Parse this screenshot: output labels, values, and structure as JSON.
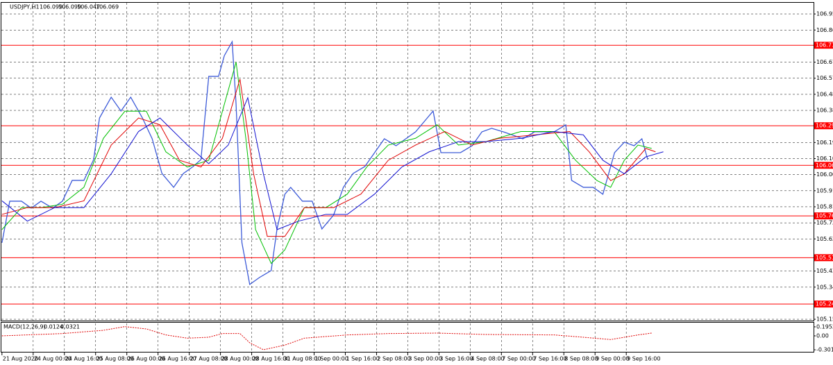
{
  "chart_data": [
    {
      "type": "line",
      "title": "USDJPY,H1",
      "ohlc": [
        106.099,
        106.099,
        106.047,
        106.069
      ],
      "xlim": [
        -1,
        416
      ],
      "xticks": [
        {
          "value": 0,
          "label": "21 Aug 2020"
        },
        {
          "value": 16,
          "label": "24 Aug 00:00"
        },
        {
          "value": 32,
          "label": "24 Aug 16:00"
        },
        {
          "value": 48,
          "label": "25 Aug 08:00"
        },
        {
          "value": 64,
          "label": "26 Aug 00:00"
        },
        {
          "value": 80,
          "label": "26 Aug 16:00"
        },
        {
          "value": 96,
          "label": "27 Aug 08:00"
        },
        {
          "value": 112,
          "label": "28 Aug 00:00"
        },
        {
          "value": 128,
          "label": "28 Aug 16:00"
        },
        {
          "value": 144,
          "label": "31 Aug 08:00"
        },
        {
          "value": 160,
          "label": "1 Sep 00:00"
        },
        {
          "value": 176,
          "label": "1 Sep 16:00"
        },
        {
          "value": 192,
          "label": "2 Sep 08:00"
        },
        {
          "value": 208,
          "label": "3 Sep 00:00"
        },
        {
          "value": 224,
          "label": "3 Sep 16:00"
        },
        {
          "value": 240,
          "label": "4 Sep 08:00"
        },
        {
          "value": 256,
          "label": "7 Sep 00:00"
        },
        {
          "value": 272,
          "label": "7 Sep 16:00"
        },
        {
          "value": 288,
          "label": "8 Sep 08:00"
        },
        {
          "value": 304,
          "label": "9 Sep 00:00"
        },
        {
          "value": 320,
          "label": "9 Sep 16:00"
        }
      ],
      "ylim": [
        105.138,
        107.017
      ],
      "yticks": [
        106.955,
        {
          "value": 106.86,
          "label": "106.860"
        },
        {
          "value": 106.67,
          "label": "106.670"
        },
        106.575,
        {
          "value": 106.48,
          "label": "106.480"
        },
        106.385,
        106.195,
        {
          "value": 106.1,
          "label": "106.100"
        },
        106.005,
        {
          "value": 105.91,
          "label": "105.910"
        },
        105.815,
        {
          "value": 105.72,
          "label": "105.720"
        },
        105.625,
        105.435,
        {
          "value": 105.34,
          "label": "105.340"
        },
        {
          "value": 105.15,
          "label": "105.150"
        }
      ],
      "levels": [
        {
          "value": 106.77,
          "label": "106.770"
        },
        106.294,
        {
          "value": 106.06,
          "label": "106.060"
        },
        105.761,
        105.514,
        {
          "value": 105.24,
          "label": "105.240"
        }
      ],
      "level_color": "#ff0000",
      "grid": true,
      "series": [
        {
          "color": "#3c5ad8",
          "x": [
            0,
            4,
            10,
            15,
            20,
            26,
            31,
            36,
            42,
            47,
            50,
            56,
            61,
            66,
            72,
            77,
            82,
            88,
            93,
            98,
            102,
            106,
            111,
            114,
            118,
            120,
            123,
            127,
            132,
            138,
            141,
            145,
            148,
            154,
            159,
            164,
            170,
            175,
            180,
            186,
            191,
            196,
            202,
            207,
            212,
            218,
            221,
            225,
            230,
            235,
            241,
            246,
            251,
            257,
            262,
            267,
            273,
            278,
            283,
            289,
            292,
            298,
            303,
            308,
            314,
            319,
            324,
            328,
            331
          ],
          "values": [
            105.602,
            105.848,
            105.848,
            105.807,
            105.848,
            105.807,
            105.848,
            105.971,
            105.971,
            106.094,
            106.34,
            106.463,
            106.381,
            106.463,
            106.34,
            106.217,
            106.012,
            105.93,
            106.012,
            106.053,
            106.094,
            106.586,
            106.586,
            106.709,
            106.791,
            106.422,
            105.602,
            105.356,
            105.397,
            105.438,
            105.684,
            105.889,
            105.93,
            105.848,
            105.848,
            105.684,
            105.766,
            105.93,
            106.012,
            106.053,
            106.135,
            106.217,
            106.176,
            106.217,
            106.258,
            106.34,
            106.381,
            106.135,
            106.135,
            106.135,
            106.176,
            106.258,
            106.279,
            106.258,
            106.238,
            106.217,
            106.258,
            106.258,
            106.258,
            106.299,
            105.971,
            105.93,
            105.93,
            105.889,
            106.135,
            106.197,
            106.176,
            106.217,
            106.094
          ]
        },
        {
          "color": "#00c000",
          "x": [
            0,
            10,
            20,
            31,
            42,
            52,
            63,
            74,
            84,
            95,
            106,
            113,
            120,
            125,
            130,
            138,
            145,
            155,
            166,
            177,
            187,
            198,
            212,
            223,
            234,
            248,
            266,
            283,
            294,
            305,
            312,
            319,
            326,
            333
          ],
          "values": [
            105.68,
            105.81,
            105.81,
            105.83,
            105.93,
            106.22,
            106.38,
            106.38,
            106.14,
            106.05,
            106.09,
            106.38,
            106.67,
            106.22,
            105.68,
            105.48,
            105.56,
            105.81,
            105.81,
            105.89,
            106.05,
            106.18,
            106.22,
            106.3,
            106.18,
            106.2,
            106.26,
            106.26,
            106.09,
            105.97,
            105.93,
            106.09,
            106.18,
            106.16
          ]
        },
        {
          "color": "#e00000",
          "x": [
            0,
            13,
            27,
            42,
            56,
            70,
            81,
            91,
            102,
            113,
            122,
            129,
            136,
            145,
            155,
            170,
            184,
            198,
            212,
            227,
            241,
            255,
            273,
            291,
            301,
            312,
            319,
            330,
            335
          ],
          "values": [
            105.77,
            105.81,
            105.81,
            105.85,
            106.18,
            106.34,
            106.3,
            106.09,
            106.05,
            106.22,
            106.57,
            106.01,
            105.64,
            105.64,
            105.81,
            105.81,
            105.89,
            106.09,
            106.18,
            106.26,
            106.18,
            106.22,
            106.24,
            106.26,
            106.14,
            105.97,
            106.01,
            106.16,
            106.14
          ]
        },
        {
          "color": "#1010d0",
          "x": [
            0,
            13,
            27,
            42,
            56,
            70,
            81,
            95,
            106,
            116,
            126,
            134,
            141,
            152,
            166,
            177,
            191,
            205,
            219,
            234,
            248,
            266,
            283,
            298,
            308,
            319,
            330,
            339
          ],
          "values": [
            105.85,
            105.73,
            105.81,
            105.81,
            106.01,
            106.26,
            106.34,
            106.18,
            106.07,
            106.18,
            106.46,
            106.01,
            105.68,
            105.73,
            105.77,
            105.77,
            105.89,
            106.05,
            106.14,
            106.2,
            106.2,
            106.22,
            106.26,
            106.24,
            106.09,
            106.01,
            106.11,
            106.14
          ]
        }
      ]
    },
    {
      "type": "line",
      "title": "MACD(12,26,9)",
      "readout": [
        0.0124,
        0.0321
      ],
      "xlim": [
        -1,
        416
      ],
      "ylim": [
        -0.345,
        0.285
      ],
      "yticks": [
        0.1952,
        {
          "value": 0,
          "label": "0.00"
        },
        -0.3014
      ],
      "series": [
        {
          "color": "#e00000",
          "x": [
            0,
            31,
            52,
            63,
            74,
            84,
            95,
            106,
            113,
            122,
            127,
            134,
            145,
            155,
            177,
            198,
            223,
            248,
            283,
            298,
            312,
            326,
            333
          ],
          "values": [
            0.0,
            0.05,
            0.12,
            0.2,
            0.15,
            0.02,
            -0.05,
            -0.03,
            0.05,
            0.05,
            -0.15,
            -0.3,
            -0.2,
            -0.05,
            0.02,
            0.05,
            0.06,
            0.03,
            0.02,
            -0.03,
            -0.08,
            0.02,
            0.06
          ]
        }
      ]
    }
  ]
}
